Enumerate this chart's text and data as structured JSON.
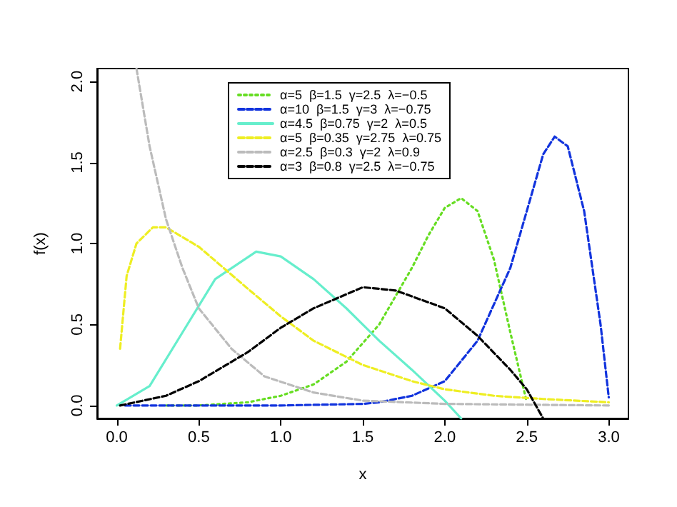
{
  "chart_data": {
    "type": "line",
    "xlabel": "x",
    "ylabel": "f(x)",
    "xlim": [
      -0.12,
      3.12
    ],
    "ylim": [
      -0.08,
      2.08
    ],
    "xticks": [
      {
        "value": 0,
        "label": "0.0"
      },
      {
        "value": 0.5,
        "label": "0.5"
      },
      {
        "value": 1,
        "label": "1.0"
      },
      {
        "value": 1.5,
        "label": "1.5"
      },
      {
        "value": 2,
        "label": "2.0"
      },
      {
        "value": 2.5,
        "label": "2.5"
      },
      {
        "value": 3,
        "label": "3.0"
      }
    ],
    "yticks": [
      {
        "value": 0,
        "label": "0.0"
      },
      {
        "value": 0.5,
        "label": "0.5"
      },
      {
        "value": 1,
        "label": "1.0"
      },
      {
        "value": 1.5,
        "label": "1.5"
      },
      {
        "value": 2,
        "label": "2.0"
      }
    ],
    "grid": false,
    "legend": "top",
    "marker": "none",
    "series": [
      {
        "name": "α=5  β=1.5  γ=2.5  λ=−0.5",
        "color": "#66dd22",
        "line_style": "dotted",
        "x": [
          0.3,
          0.5,
          0.8,
          1.0,
          1.2,
          1.4,
          1.6,
          1.8,
          1.9,
          2.0,
          2.1,
          2.2,
          2.3,
          2.4,
          2.5
        ],
        "values": [
          0,
          0,
          0.02,
          0.06,
          0.13,
          0.27,
          0.5,
          0.85,
          1.05,
          1.22,
          1.28,
          1.2,
          0.9,
          0.45,
          0.02
        ]
      },
      {
        "name": "α=10  β=1.5  γ=3  λ=−0.75",
        "color": "#1133dd",
        "line_style": "dashed",
        "x": [
          0.05,
          0.5,
          1.0,
          1.5,
          1.6,
          1.8,
          2.0,
          2.2,
          2.4,
          2.5,
          2.6,
          2.67,
          2.75,
          2.85,
          2.95,
          3.0
        ],
        "values": [
          0,
          0,
          0,
          0.01,
          0.02,
          0.06,
          0.15,
          0.4,
          0.85,
          1.2,
          1.55,
          1.66,
          1.6,
          1.2,
          0.5,
          0.05
        ]
      },
      {
        "name": "α=4.5  β=0.75  γ=2  λ=0.5",
        "color": "#66eecc",
        "line_style": "solid",
        "x": [
          0,
          0.2,
          0.4,
          0.6,
          0.85,
          1.0,
          1.2,
          1.4,
          1.6,
          1.8,
          2.0,
          2.1
        ],
        "values": [
          0,
          0.12,
          0.45,
          0.78,
          0.95,
          0.92,
          0.78,
          0.6,
          0.4,
          0.22,
          0.03,
          -0.08
        ]
      },
      {
        "name": "α=5  β=0.35  γ=2.75  λ=0.75",
        "color": "#eeee22",
        "line_style": "dashed",
        "x": [
          0.02,
          0.06,
          0.12,
          0.22,
          0.3,
          0.5,
          0.8,
          1.0,
          1.2,
          1.5,
          1.8,
          2.0,
          2.3,
          2.6,
          3.0
        ],
        "values": [
          0.35,
          0.8,
          1.0,
          1.1,
          1.1,
          0.98,
          0.72,
          0.55,
          0.4,
          0.25,
          0.15,
          0.1,
          0.06,
          0.04,
          0.02
        ]
      },
      {
        "name": "α=2.5  β=0.3  γ=2  λ=0.9",
        "color": "#bbbbbb",
        "line_style": "dashed",
        "x": [
          0.12,
          0.2,
          0.3,
          0.4,
          0.5,
          0.7,
          0.9,
          1.2,
          1.5,
          2.0,
          3.0
        ],
        "values": [
          2.08,
          1.6,
          1.15,
          0.85,
          0.6,
          0.35,
          0.18,
          0.08,
          0.03,
          0.01,
          0
        ]
      },
      {
        "name": "α=3  β=0.8  γ=2.5  λ=−0.75",
        "color": "#000000",
        "line_style": "dashed",
        "x": [
          0.02,
          0.3,
          0.5,
          0.8,
          1.0,
          1.2,
          1.5,
          1.7,
          2.0,
          2.2,
          2.4,
          2.5,
          2.6
        ],
        "values": [
          0,
          0.06,
          0.15,
          0.33,
          0.48,
          0.6,
          0.73,
          0.71,
          0.6,
          0.43,
          0.22,
          0.1,
          -0.08
        ]
      }
    ]
  }
}
